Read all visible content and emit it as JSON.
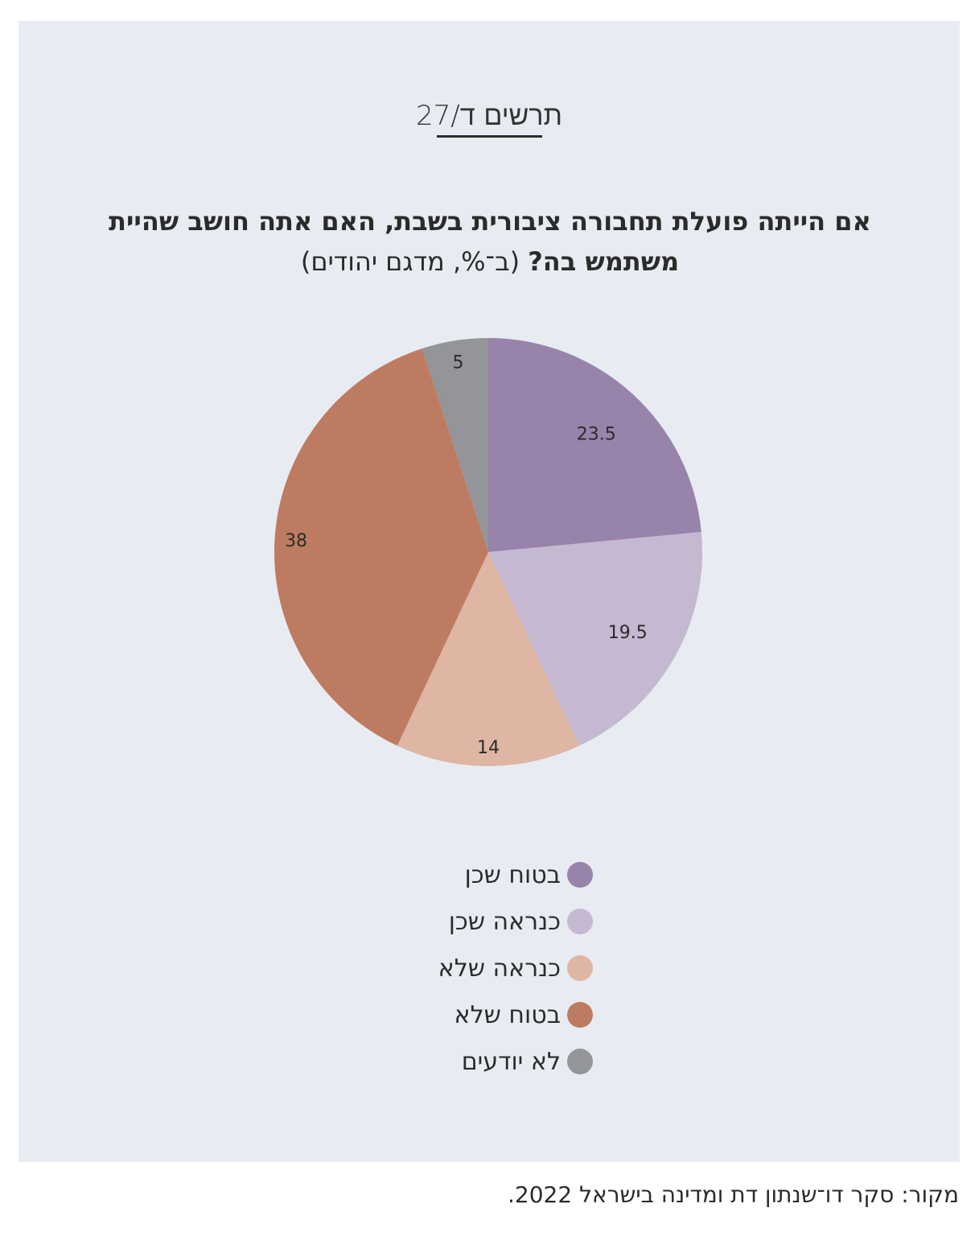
{
  "figure_label": "תרשים ד/27",
  "title_question": "אם הייתה פועלת תחבורה ציבורית בשבת, האם אתה חושב שהיית משתמש בה?",
  "title_note": "(ב־%, מדגם יהודים)",
  "source": "מקור: סקר דו־שנתון דת ומדינה בישראל 2022.",
  "chart_data": {
    "type": "pie",
    "unit": "%",
    "slices": [
      {
        "label": "בטוח שכן",
        "value": 23.5,
        "value_label": "23.5",
        "color": "#9883ab"
      },
      {
        "label": "כנראה שכן",
        "value": 19.5,
        "value_label": "19.5",
        "color": "#c5b8d1"
      },
      {
        "label": "כנראה שלא",
        "value": 14,
        "value_label": "14",
        "color": "#deb6a3"
      },
      {
        "label": "בטוח שלא",
        "value": 38,
        "value_label": "38",
        "color": "#bd7b61"
      },
      {
        "label": "לא יודעים",
        "value": 5,
        "value_label": "5",
        "color": "#939598"
      }
    ],
    "start_angle_deg": 0,
    "direction": "clockwise",
    "legend_position": "bottom"
  }
}
